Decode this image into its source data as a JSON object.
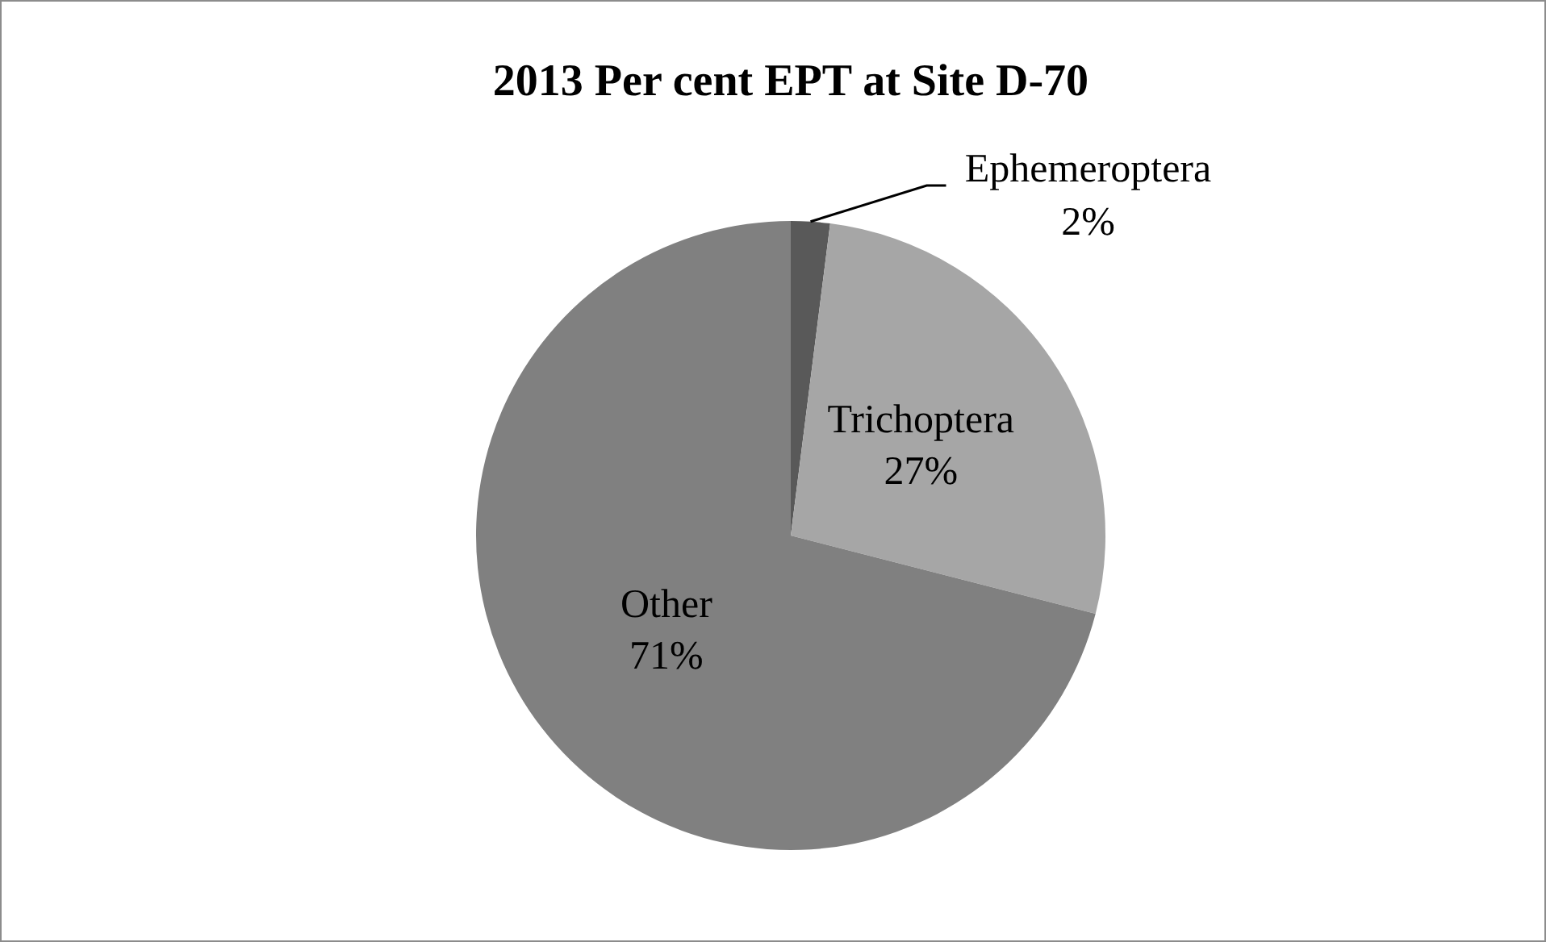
{
  "chart_data": {
    "type": "pie",
    "title": "2013 Per cent EPT at Site D-70",
    "categories": [
      "Ephemeroptera",
      "Trichoptera",
      "Other"
    ],
    "values": [
      2,
      27,
      71
    ],
    "value_labels": [
      "2%",
      "27%",
      "71%"
    ],
    "colors": [
      "#595959",
      "#a6a6a6",
      "#808080"
    ],
    "legend": false
  }
}
